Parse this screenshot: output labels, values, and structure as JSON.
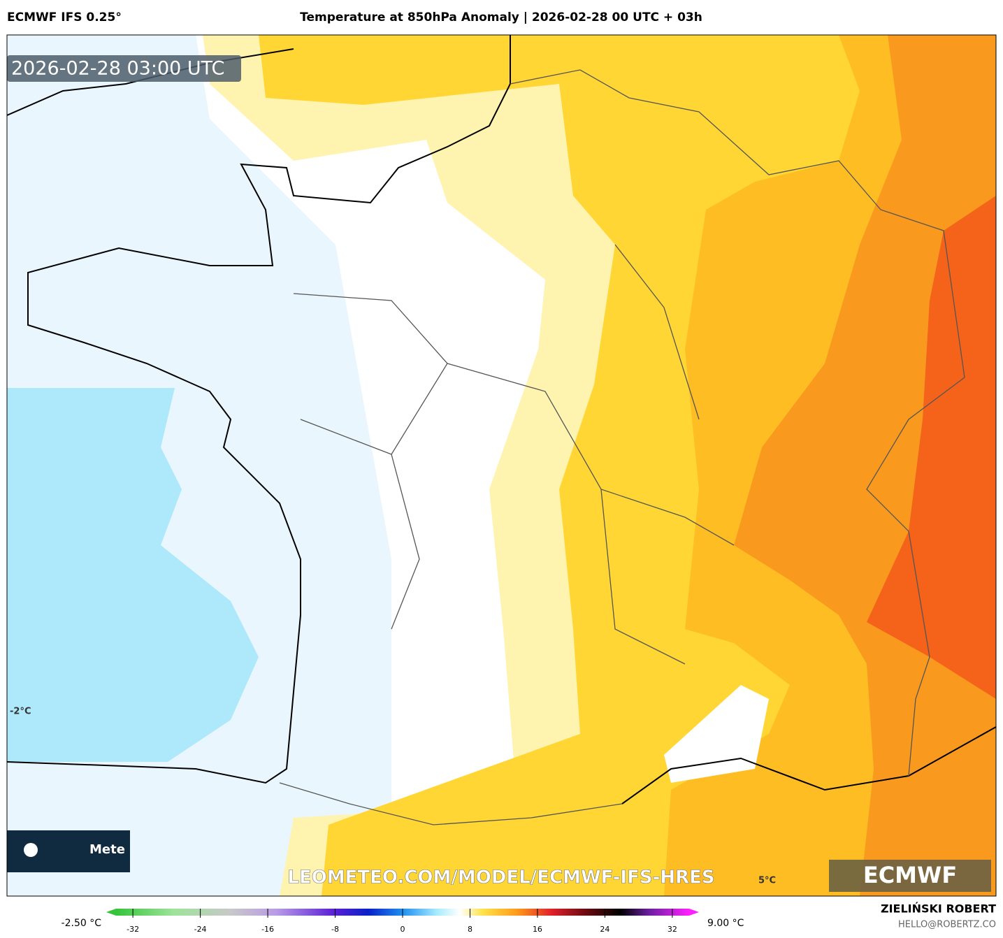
{
  "header": {
    "model": "ECMWF IFS 0.25°",
    "title": "Temperature at 850hPa Anomaly | 2026-02-28 00 UTC + 03h"
  },
  "map": {
    "valid_time": "2026-02-28 03:00 UTC",
    "labels": [
      "-2°C",
      "5°C"
    ],
    "watermark": "LEOMETEO.COM/MODEL/ECMWF-IFS-HRES",
    "logo_left": "Mete",
    "logo_right": "ECMWF"
  },
  "colorbar": {
    "min_label": "-2.50 °C",
    "max_label": "9.00 °C",
    "lim": [
      -34,
      34
    ],
    "ticks": [
      -32,
      -24,
      -16,
      -8,
      0,
      8,
      16,
      24,
      32
    ]
  },
  "footer": {
    "author": "ZIELIŃSKI ROBERT",
    "contact": "HELLO@ROBERTZ.CO"
  }
}
